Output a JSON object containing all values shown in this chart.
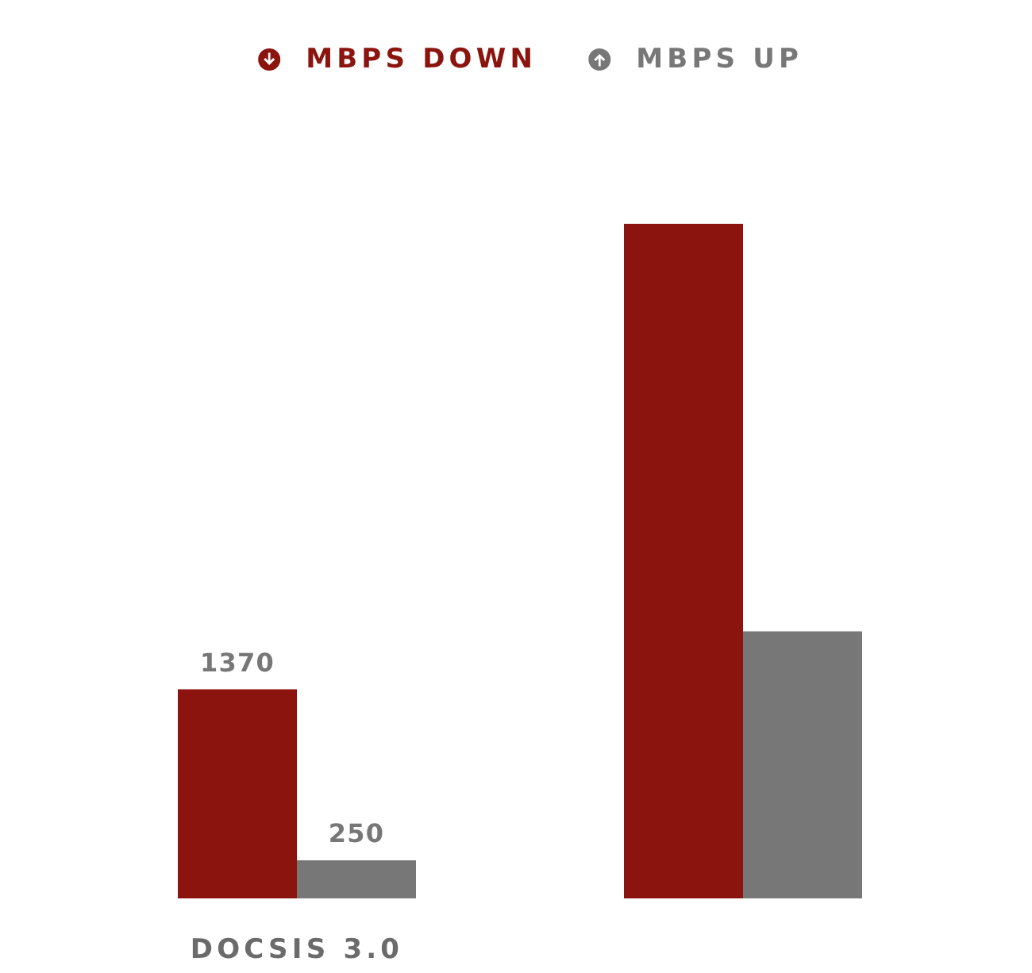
{
  "chart_data": {
    "type": "bar",
    "categories": [
      "DOCSIS 3.0",
      null
    ],
    "series": [
      {
        "name": "MBPS DOWN",
        "color": "#8b140f",
        "values": [
          1370,
          4420
        ],
        "value_labels": [
          "1370",
          null
        ]
      },
      {
        "name": "MBPS UP",
        "color": "#777777",
        "values": [
          250,
          1750
        ],
        "value_labels": [
          "250",
          null
        ]
      }
    ],
    "legend": "top"
  }
}
